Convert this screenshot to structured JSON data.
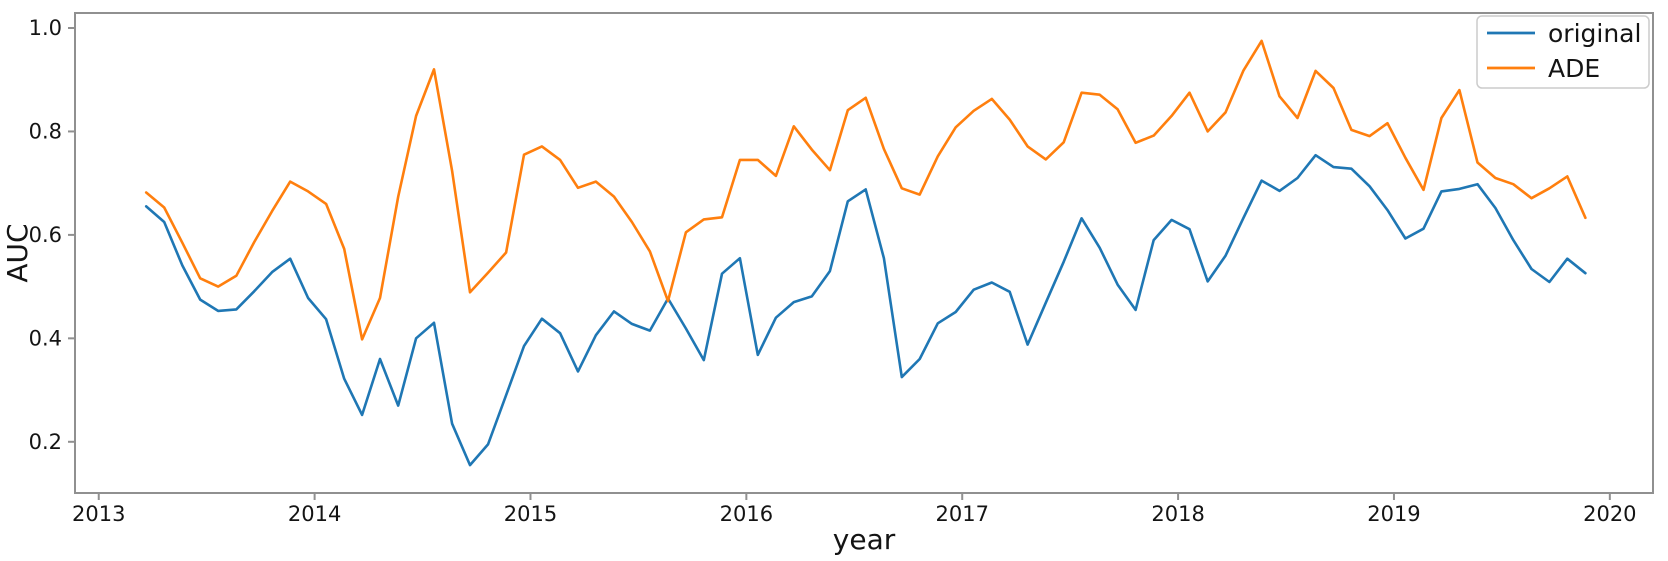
{
  "chart_data": {
    "type": "line",
    "title": "",
    "xlabel": "year",
    "ylabel": "AUC",
    "xlim": [
      2012.89,
      2020.2
    ],
    "ylim": [
      0.101,
      1.029
    ],
    "x_ticks": [
      2013,
      2014,
      2015,
      2016,
      2017,
      2018,
      2019,
      2020
    ],
    "y_ticks": [
      0.2,
      0.4,
      0.6,
      0.8,
      1.0
    ],
    "grid": false,
    "legend_position": "upper right",
    "frame_color": "#909090",
    "x_unit": "decimal_year_monthly",
    "x": [
      2013.22,
      2013.303,
      2013.387,
      2013.47,
      2013.553,
      2013.637,
      2013.72,
      2013.803,
      2013.887,
      2013.97,
      2014.053,
      2014.137,
      2014.22,
      2014.303,
      2014.387,
      2014.47,
      2014.553,
      2014.637,
      2014.72,
      2014.803,
      2014.887,
      2014.97,
      2015.053,
      2015.137,
      2015.22,
      2015.303,
      2015.387,
      2015.47,
      2015.553,
      2015.637,
      2015.72,
      2015.803,
      2015.887,
      2015.97,
      2016.053,
      2016.137,
      2016.22,
      2016.303,
      2016.387,
      2016.47,
      2016.553,
      2016.637,
      2016.72,
      2016.803,
      2016.887,
      2016.97,
      2017.053,
      2017.137,
      2017.22,
      2017.303,
      2017.387,
      2017.47,
      2017.553,
      2017.637,
      2017.72,
      2017.803,
      2017.887,
      2017.97,
      2018.053,
      2018.137,
      2018.22,
      2018.303,
      2018.387,
      2018.47,
      2018.553,
      2018.637,
      2018.72,
      2018.803,
      2018.887,
      2018.97,
      2019.053,
      2019.137,
      2019.22,
      2019.303,
      2019.387,
      2019.47,
      2019.553,
      2019.637,
      2019.72,
      2019.803,
      2019.887
    ],
    "series": [
      {
        "name": "original",
        "color": "#1f77b4",
        "y": [
          0.655,
          0.625,
          0.541,
          0.475,
          0.453,
          0.456,
          0.491,
          0.528,
          0.554,
          0.478,
          0.437,
          0.322,
          0.252,
          0.36,
          0.27,
          0.4,
          0.43,
          0.235,
          0.155,
          0.195,
          0.29,
          0.385,
          0.438,
          0.41,
          0.336,
          0.406,
          0.452,
          0.428,
          0.415,
          0.477,
          0.419,
          0.358,
          0.525,
          0.555,
          0.368,
          0.44,
          0.47,
          0.481,
          0.53,
          0.665,
          0.688,
          0.555,
          0.325,
          0.36,
          0.429,
          0.451,
          0.494,
          0.508,
          0.49,
          0.388,
          0.469,
          0.548,
          0.632,
          0.575,
          0.504,
          0.455,
          0.59,
          0.629,
          0.611,
          0.51,
          0.56,
          0.633,
          0.705,
          0.685,
          0.71,
          0.754,
          0.731,
          0.728,
          0.694,
          0.648,
          0.593,
          0.612,
          0.684,
          0.689,
          0.698,
          0.652,
          0.59,
          0.534,
          0.509,
          0.554,
          0.526
        ]
      },
      {
        "name": "ADE",
        "color": "#ff7f0e",
        "y": [
          0.682,
          0.653,
          0.585,
          0.516,
          0.5,
          0.521,
          0.586,
          0.646,
          0.703,
          0.684,
          0.66,
          0.573,
          0.398,
          0.478,
          0.674,
          0.83,
          0.92,
          0.724,
          0.489,
          0.527,
          0.566,
          0.755,
          0.771,
          0.745,
          0.691,
          0.703,
          0.674,
          0.625,
          0.568,
          0.472,
          0.605,
          0.63,
          0.634,
          0.745,
          0.745,
          0.714,
          0.81,
          0.765,
          0.725,
          0.841,
          0.865,
          0.766,
          0.69,
          0.678,
          0.752,
          0.808,
          0.84,
          0.863,
          0.823,
          0.771,
          0.746,
          0.779,
          0.875,
          0.871,
          0.843,
          0.778,
          0.792,
          0.83,
          0.875,
          0.8,
          0.837,
          0.918,
          0.975,
          0.868,
          0.826,
          0.917,
          0.884,
          0.803,
          0.791,
          0.816,
          0.749,
          0.687,
          0.826,
          0.88,
          0.74,
          0.71,
          0.698,
          0.671,
          0.69,
          0.713,
          0.633
        ]
      }
    ]
  }
}
